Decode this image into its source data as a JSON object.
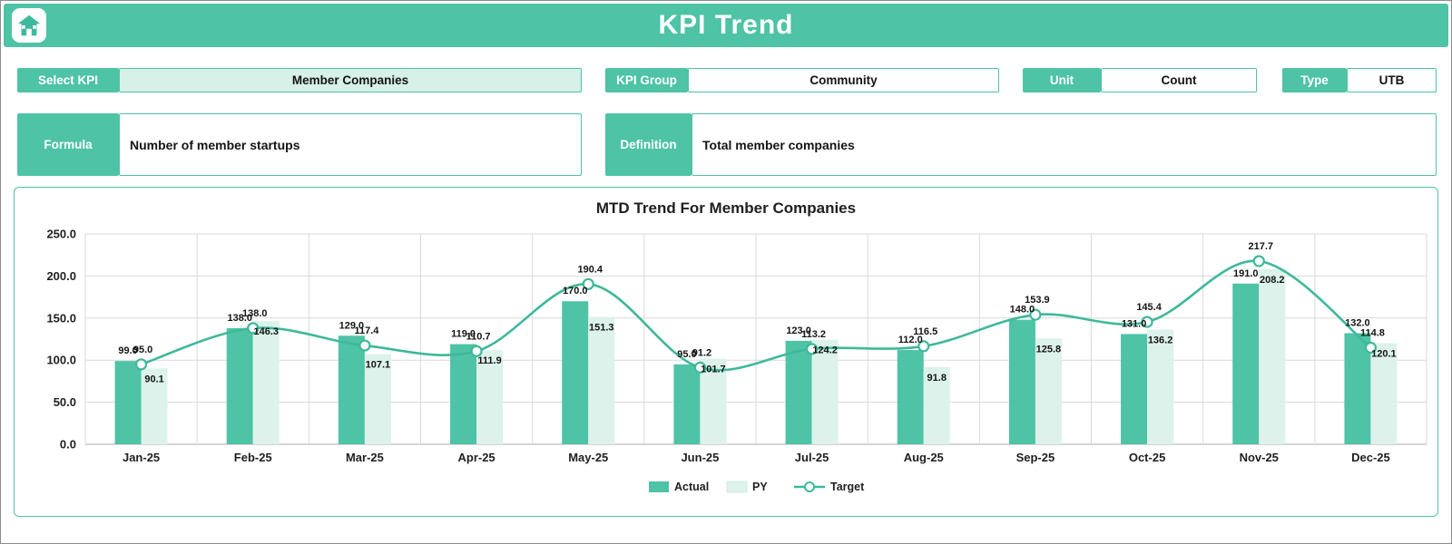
{
  "header": {
    "title": "KPI Trend"
  },
  "fields": {
    "select_kpi": {
      "label": "Select KPI",
      "value": "Member Companies"
    },
    "kpi_group": {
      "label": "KPI Group",
      "value": "Community"
    },
    "unit": {
      "label": "Unit",
      "value": "Count"
    },
    "type": {
      "label": "Type",
      "value": "UTB"
    },
    "formula": {
      "label": "Formula",
      "value": "Number of member startups"
    },
    "definition": {
      "label": "Definition",
      "value": "Total member companies"
    }
  },
  "colors": {
    "teal": "#4EC3A6",
    "teal_line": "#3FB89B",
    "light_teal": "#DCF2EB",
    "select_bg": "#D7F0E8",
    "grid": "#DADADA",
    "text": "#1F1F1F"
  },
  "chart_data": {
    "type": "combo-bar-line",
    "title": "MTD Trend For Member Companies",
    "categories": [
      "Jan-25",
      "Feb-25",
      "Mar-25",
      "Apr-25",
      "May-25",
      "Jun-25",
      "Jul-25",
      "Aug-25",
      "Sep-25",
      "Oct-25",
      "Nov-25",
      "Dec-25"
    ],
    "series": [
      {
        "name": "Actual",
        "type": "bar",
        "color": "#4EC3A6",
        "values": [
          99.0,
          138.0,
          129.0,
          119.0,
          170.0,
          95.0,
          123.0,
          112.0,
          148.0,
          131.0,
          191.0,
          132.0
        ]
      },
      {
        "name": "PY",
        "type": "bar",
        "color": "#DCF2EB",
        "values": [
          90.1,
          146.3,
          107.1,
          111.9,
          151.3,
          101.7,
          124.2,
          91.8,
          125.8,
          136.2,
          208.2,
          120.1
        ]
      },
      {
        "name": "Target",
        "type": "line",
        "color": "#3FB89B",
        "values": [
          95.0,
          138.0,
          117.4,
          110.7,
          190.4,
          91.2,
          113.2,
          116.5,
          153.9,
          145.4,
          217.7,
          114.8
        ]
      }
    ],
    "ylim": [
      0,
      250
    ],
    "ytick_step": 50,
    "ytick_labels": [
      "0.0",
      "50.0",
      "100.0",
      "150.0",
      "200.0",
      "250.0"
    ],
    "legend": [
      "Actual",
      "PY",
      "Target"
    ],
    "legend_position": "bottom",
    "grid": true
  }
}
